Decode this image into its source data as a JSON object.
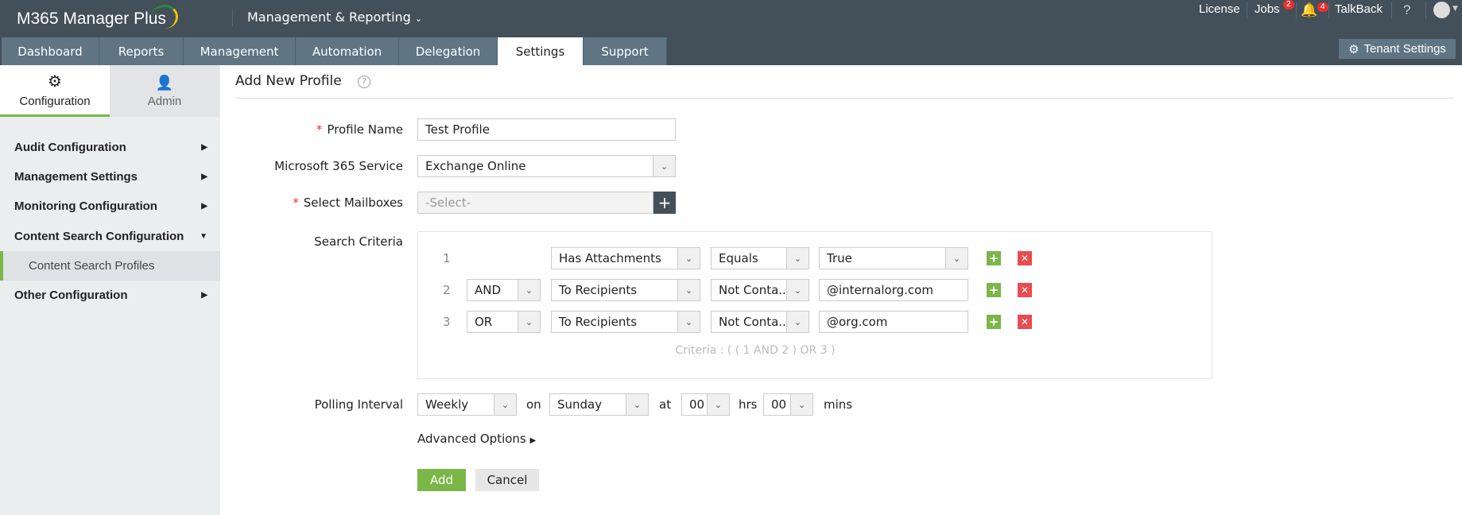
{
  "header": {
    "app_name": "M365 Manager Plus",
    "module": "Management & Reporting",
    "license": "License",
    "jobs": "Jobs",
    "jobs_count": "2",
    "notifications_count": "4",
    "talkback": "TalkBack",
    "help": "?",
    "tenant_settings": "Tenant Settings"
  },
  "tabs": [
    "Dashboard",
    "Reports",
    "Management",
    "Automation",
    "Delegation",
    "Settings",
    "Support"
  ],
  "active_tab": "Settings",
  "sidebar": {
    "tabs": [
      "Configuration",
      "Admin"
    ],
    "items": [
      {
        "label": "Audit Configuration"
      },
      {
        "label": "Management Settings"
      },
      {
        "label": "Monitoring Configuration"
      },
      {
        "label": "Content Search Configuration"
      },
      {
        "label": "Content Search Profiles"
      },
      {
        "label": "Other Configuration"
      }
    ]
  },
  "form": {
    "title": "Add New Profile",
    "profile_name_label": "Profile Name",
    "profile_name": "Test Profile",
    "service_label": "Microsoft 365 Service",
    "service": "Exchange Online",
    "mailboxes_label": "Select Mailboxes",
    "mailboxes_placeholder": "-Select-",
    "criteria_label": "Search Criteria",
    "criteria": [
      {
        "n": "1",
        "op": "",
        "field": "Has Attachments",
        "cond": "Equals",
        "value": "True"
      },
      {
        "n": "2",
        "op": "AND",
        "field": "To Recipients",
        "cond": "Not Conta...",
        "value": "@internalorg.com"
      },
      {
        "n": "3",
        "op": "OR",
        "field": "To Recipients",
        "cond": "Not Conta...",
        "value": "@org.com"
      }
    ],
    "criteria_expr": "Criteria : ( ( 1 AND 2 ) OR 3 )",
    "polling_label": "Polling Interval",
    "polling": "Weekly",
    "on": "on",
    "day": "Sunday",
    "at": "at",
    "hrs_value": "00",
    "hrs": "hrs",
    "mins_value": "00",
    "mins": "mins",
    "advanced": "Advanced Options",
    "add": "Add",
    "cancel": "Cancel"
  },
  "colors": {
    "topbar": "#434f59",
    "tab": "#5f7583",
    "accent_green": "#7ab648",
    "delete_red": "#e84c4f"
  }
}
